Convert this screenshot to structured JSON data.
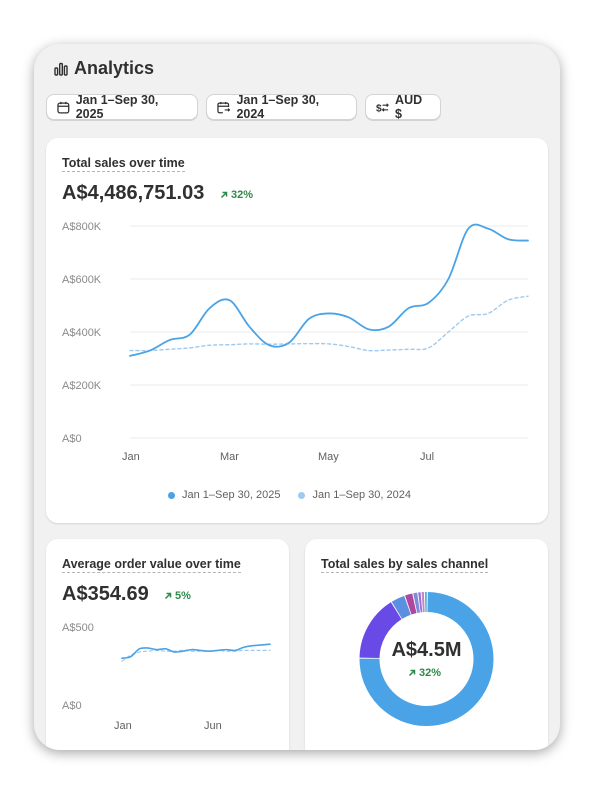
{
  "header": {
    "title": "Analytics",
    "icon": "bar-chart-icon"
  },
  "filters": {
    "date_range": "Jan 1–Sep 30, 2025",
    "compare_range": "Jan 1–Sep 30, 2024",
    "currency": "AUD $"
  },
  "total_sales": {
    "title": "Total sales over time",
    "value": "A$4,486,751.03",
    "trend": "32%",
    "legend": [
      "Jan 1–Sep 30, 2025",
      "Jan 1–Sep 30, 2024"
    ]
  },
  "aov": {
    "title": "Average order value over time",
    "value": "A$354.69",
    "trend": "5%"
  },
  "channel": {
    "title": "Total sales by sales channel",
    "center_value": "A$4.5M",
    "trend": "32%"
  },
  "colors": {
    "primary": "#4aa3e6",
    "compare": "#9fc9ee",
    "positive": "#2e8a4a",
    "violet": "#6a4ae6",
    "magenta": "#b0469e"
  },
  "chart_data": [
    {
      "type": "line",
      "title": "Total sales over time",
      "x_ticks": [
        "Jan",
        "Mar",
        "May",
        "Jul"
      ],
      "y_ticks": [
        "A$0",
        "A$200K",
        "A$400K",
        "A$600K",
        "A$800K"
      ],
      "ylim": [
        0,
        800000
      ],
      "x": [
        0,
        0.2,
        0.4,
        0.6,
        0.8,
        1.0,
        1.2,
        1.4,
        1.6,
        1.8,
        2.0,
        2.2,
        2.4,
        2.6,
        2.8,
        3.0,
        3.2,
        3.4,
        3.6,
        3.8,
        4.0
      ],
      "series": [
        {
          "name": "Jan 1–Sep 30, 2025",
          "style": "solid",
          "values": [
            310000,
            330000,
            370000,
            390000,
            490000,
            520000,
            420000,
            350000,
            360000,
            450000,
            470000,
            455000,
            410000,
            420000,
            490000,
            510000,
            600000,
            790000,
            790000,
            750000,
            745000
          ]
        },
        {
          "name": "Jan 1–Sep 30, 2024",
          "style": "dashed",
          "values": [
            330000,
            330000,
            335000,
            340000,
            350000,
            352000,
            355000,
            354000,
            355000,
            356000,
            355000,
            345000,
            330000,
            332000,
            335000,
            340000,
            400000,
            460000,
            470000,
            520000,
            535000
          ]
        }
      ],
      "legend_position": "bottom"
    },
    {
      "type": "line",
      "title": "Average order value over time",
      "x_ticks": [
        "Jan",
        "Jun"
      ],
      "y_ticks": [
        "A$0",
        "A$500"
      ],
      "ylim": [
        0,
        500
      ],
      "x": [
        0,
        0.5,
        1,
        1.5,
        2,
        2.5,
        3,
        3.5,
        4,
        4.5,
        5,
        5.5,
        6,
        6.5,
        7,
        7.5,
        8,
        8.5
      ],
      "series": [
        {
          "name": "Jan 1–Sep 30, 2025",
          "style": "solid",
          "values": [
            300,
            310,
            360,
            365,
            355,
            360,
            340,
            345,
            355,
            350,
            345,
            350,
            355,
            350,
            370,
            380,
            385,
            390
          ]
        },
        {
          "name": "Jan 1–Sep 30, 2024",
          "style": "dashed",
          "values": [
            280,
            320,
            340,
            345,
            350,
            345,
            345,
            350,
            345,
            345,
            345,
            350,
            345,
            345,
            350,
            350,
            350,
            350
          ]
        }
      ]
    },
    {
      "type": "pie",
      "title": "Total sales by sales channel",
      "center_label": "A$4.5M",
      "slices": [
        {
          "value": 75,
          "color": "#4aa3e6"
        },
        {
          "value": 16,
          "color": "#6a4ae6"
        },
        {
          "value": 3.5,
          "color": "#5b8fe0"
        },
        {
          "value": 2,
          "color": "#b0469e"
        },
        {
          "value": 1.2,
          "color": "#7b8fd6"
        },
        {
          "value": 0.8,
          "color": "#9a6fd8"
        },
        {
          "value": 0.8,
          "color": "#c086c8"
        },
        {
          "value": 0.7,
          "color": "#5ab0d8"
        }
      ]
    }
  ]
}
